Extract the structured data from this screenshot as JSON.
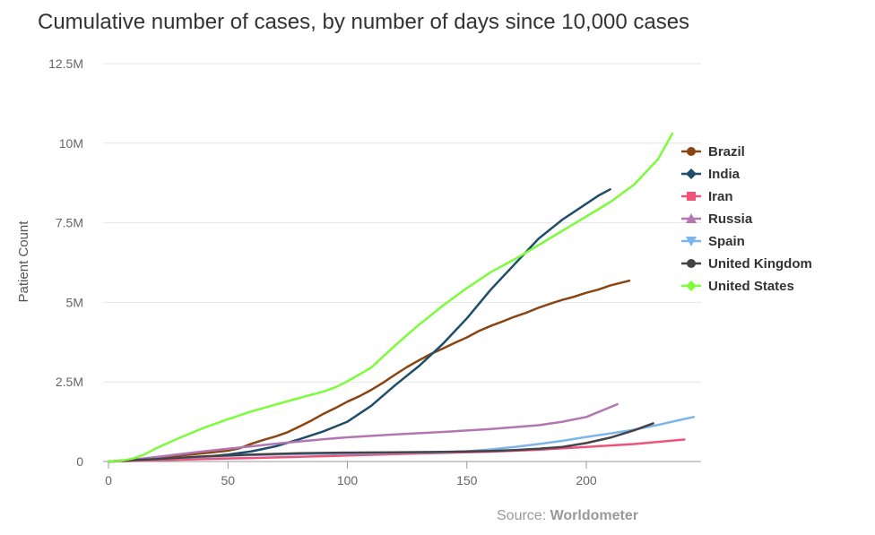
{
  "chart_data": {
    "type": "line",
    "title": "Cumulative number of cases, by number of days since 10,000 cases",
    "xlabel": "",
    "ylabel": "Patient Count",
    "xlim": [
      0,
      247
    ],
    "ylim": [
      0,
      12500000
    ],
    "x_ticks": [
      0,
      50,
      100,
      150,
      200
    ],
    "x_tick_labels": [
      "0",
      "50",
      "100",
      "150",
      "200"
    ],
    "y_ticks": [
      0,
      2500000,
      5000000,
      7500000,
      10000000,
      12500000
    ],
    "y_tick_labels": [
      "0",
      "2.5M",
      "5M",
      "7.5M",
      "10M",
      "12.5M"
    ],
    "grid": "horizontal",
    "legend_position": "right",
    "source_label": "Source: ",
    "source_name": "Worldometer",
    "series": [
      {
        "name": "Brazil",
        "color": "#8B4513",
        "marker": "circle",
        "points": [
          [
            0,
            0
          ],
          [
            10,
            40000
          ],
          [
            20,
            110000
          ],
          [
            30,
            190000
          ],
          [
            40,
            260000
          ],
          [
            50,
            340000
          ],
          [
            55,
            420000
          ],
          [
            60,
            560000
          ],
          [
            65,
            680000
          ],
          [
            70,
            790000
          ],
          [
            75,
            920000
          ],
          [
            80,
            1100000
          ],
          [
            85,
            1290000
          ],
          [
            90,
            1500000
          ],
          [
            95,
            1680000
          ],
          [
            100,
            1880000
          ],
          [
            105,
            2050000
          ],
          [
            110,
            2250000
          ],
          [
            115,
            2480000
          ],
          [
            120,
            2730000
          ],
          [
            125,
            2970000
          ],
          [
            130,
            3180000
          ],
          [
            135,
            3380000
          ],
          [
            140,
            3550000
          ],
          [
            145,
            3730000
          ],
          [
            150,
            3900000
          ],
          [
            155,
            4100000
          ],
          [
            160,
            4260000
          ],
          [
            165,
            4400000
          ],
          [
            170,
            4550000
          ],
          [
            175,
            4680000
          ],
          [
            180,
            4830000
          ],
          [
            185,
            4960000
          ],
          [
            190,
            5080000
          ],
          [
            195,
            5180000
          ],
          [
            200,
            5300000
          ],
          [
            205,
            5400000
          ],
          [
            210,
            5530000
          ],
          [
            218,
            5680000
          ]
        ]
      },
      {
        "name": "India",
        "color": "#1F4E6B",
        "marker": "diamond",
        "points": [
          [
            0,
            0
          ],
          [
            10,
            20000
          ],
          [
            20,
            60000
          ],
          [
            30,
            100000
          ],
          [
            40,
            150000
          ],
          [
            50,
            220000
          ],
          [
            60,
            320000
          ],
          [
            70,
            480000
          ],
          [
            80,
            700000
          ],
          [
            90,
            950000
          ],
          [
            100,
            1250000
          ],
          [
            110,
            1750000
          ],
          [
            120,
            2400000
          ],
          [
            130,
            3000000
          ],
          [
            140,
            3700000
          ],
          [
            150,
            4500000
          ],
          [
            160,
            5400000
          ],
          [
            170,
            6200000
          ],
          [
            180,
            7000000
          ],
          [
            190,
            7600000
          ],
          [
            200,
            8100000
          ],
          [
            205,
            8350000
          ],
          [
            210,
            8550000
          ]
        ]
      },
      {
        "name": "Iran",
        "color": "#F0537A",
        "marker": "square",
        "points": [
          [
            0,
            0
          ],
          [
            20,
            40000
          ],
          [
            40,
            80000
          ],
          [
            60,
            110000
          ],
          [
            80,
            150000
          ],
          [
            100,
            190000
          ],
          [
            120,
            230000
          ],
          [
            140,
            270000
          ],
          [
            160,
            310000
          ],
          [
            180,
            370000
          ],
          [
            200,
            460000
          ],
          [
            220,
            550000
          ],
          [
            241,
            690000
          ]
        ]
      },
      {
        "name": "Russia",
        "color": "#B276B2",
        "marker": "triangle",
        "points": [
          [
            0,
            0
          ],
          [
            10,
            60000
          ],
          [
            20,
            140000
          ],
          [
            30,
            230000
          ],
          [
            40,
            320000
          ],
          [
            50,
            400000
          ],
          [
            60,
            480000
          ],
          [
            70,
            560000
          ],
          [
            80,
            630000
          ],
          [
            90,
            700000
          ],
          [
            100,
            760000
          ],
          [
            120,
            850000
          ],
          [
            140,
            930000
          ],
          [
            160,
            1020000
          ],
          [
            180,
            1140000
          ],
          [
            190,
            1250000
          ],
          [
            200,
            1400000
          ],
          [
            213,
            1800000
          ]
        ]
      },
      {
        "name": "Spain",
        "color": "#7CB5EC",
        "marker": "triangle-down",
        "points": [
          [
            0,
            0
          ],
          [
            20,
            80000
          ],
          [
            40,
            150000
          ],
          [
            60,
            200000
          ],
          [
            80,
            230000
          ],
          [
            100,
            250000
          ],
          [
            120,
            270000
          ],
          [
            140,
            290000
          ],
          [
            150,
            320000
          ],
          [
            160,
            380000
          ],
          [
            170,
            460000
          ],
          [
            180,
            550000
          ],
          [
            190,
            650000
          ],
          [
            200,
            770000
          ],
          [
            210,
            880000
          ],
          [
            220,
            1000000
          ],
          [
            230,
            1150000
          ],
          [
            240,
            1320000
          ],
          [
            245,
            1400000
          ]
        ]
      },
      {
        "name": "United Kingdom",
        "color": "#434348",
        "marker": "circle",
        "points": [
          [
            0,
            0
          ],
          [
            20,
            80000
          ],
          [
            40,
            160000
          ],
          [
            60,
            220000
          ],
          [
            80,
            260000
          ],
          [
            100,
            280000
          ],
          [
            120,
            290000
          ],
          [
            140,
            300000
          ],
          [
            160,
            330000
          ],
          [
            170,
            360000
          ],
          [
            180,
            400000
          ],
          [
            190,
            460000
          ],
          [
            200,
            580000
          ],
          [
            210,
            750000
          ],
          [
            220,
            980000
          ],
          [
            228,
            1200000
          ]
        ]
      },
      {
        "name": "United States",
        "color": "#7CFC3A",
        "marker": "diamond",
        "points": [
          [
            0,
            0
          ],
          [
            5,
            20000
          ],
          [
            10,
            90000
          ],
          [
            15,
            220000
          ],
          [
            20,
            420000
          ],
          [
            30,
            750000
          ],
          [
            40,
            1060000
          ],
          [
            50,
            1330000
          ],
          [
            60,
            1580000
          ],
          [
            70,
            1790000
          ],
          [
            80,
            2000000
          ],
          [
            90,
            2200000
          ],
          [
            95,
            2330000
          ],
          [
            100,
            2520000
          ],
          [
            110,
            2950000
          ],
          [
            120,
            3650000
          ],
          [
            130,
            4300000
          ],
          [
            140,
            4900000
          ],
          [
            150,
            5450000
          ],
          [
            160,
            5950000
          ],
          [
            170,
            6350000
          ],
          [
            180,
            6800000
          ],
          [
            190,
            7250000
          ],
          [
            200,
            7700000
          ],
          [
            210,
            8150000
          ],
          [
            220,
            8700000
          ],
          [
            230,
            9500000
          ],
          [
            236,
            10300000
          ]
        ]
      }
    ]
  }
}
